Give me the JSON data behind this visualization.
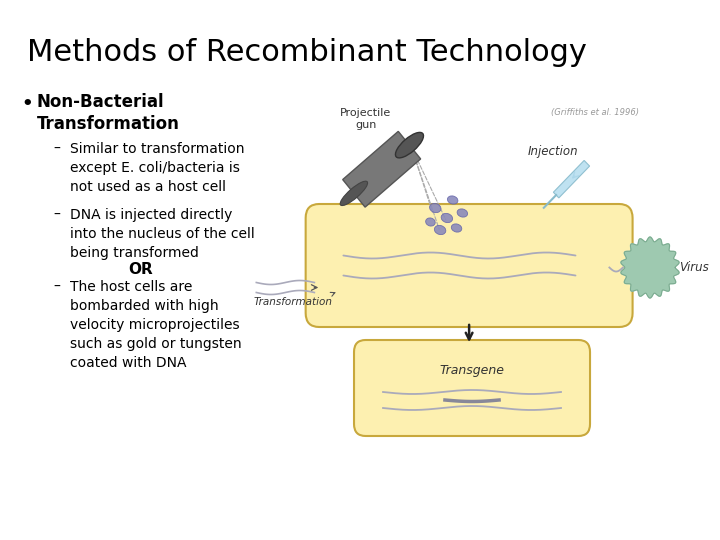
{
  "title": "Methods of Recombinant Technology",
  "title_fontsize": 22,
  "bg_color": "#ffffff",
  "text_color": "#000000",
  "bullet_bold": "Non-Bacterial\nTransformation",
  "bullet_bold_fontsize": 12,
  "sub1": "Similar to transformation\nexcept E. coli/bacteria is\nnot used as a host cell",
  "sub2": "DNA is injected directly\ninto the nucleus of the cell\nbeing transformed",
  "or_text": "OR",
  "sub3": "The host cells are\nbombarded with high\nvelocity microprojectiles\nsuch as gold or tungsten\ncoated with DNA",
  "sub_fontsize": 10,
  "citation": "(Griffiths et al. 1996)",
  "label_projectile": "Projectile\ngun",
  "label_injection": "Injection",
  "label_transformation": "Transformation",
  "label_virus": "Virus",
  "label_transgene": "Transgene",
  "cell_color": "#fdf0b0",
  "cell_edge_color": "#c8a83c",
  "virus_color": "#9ec9b0",
  "projectile_color": "#787878",
  "needle_color": "#b8dff0",
  "particle_color": "#8888bb",
  "dna_color": "#aaaabb",
  "arrow_color": "#222222"
}
